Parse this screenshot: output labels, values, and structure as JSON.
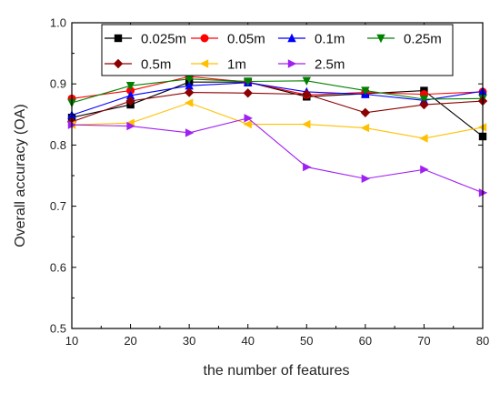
{
  "chart_data": {
    "type": "line",
    "xlabel": "the number of features",
    "ylabel": "Overall accuracy (OA)",
    "x": [
      10,
      20,
      30,
      40,
      50,
      60,
      70,
      80
    ],
    "xlim": [
      10,
      80
    ],
    "ylim": [
      0.5,
      1.0
    ],
    "xticks": [
      "10",
      "20",
      "30",
      "40",
      "50",
      "60",
      "70",
      "80"
    ],
    "yticks": [
      "0.5",
      "0.6",
      "0.7",
      "0.8",
      "0.9",
      "1.0"
    ],
    "grid": false,
    "legend_position": "top",
    "series": [
      {
        "name": "0.025m",
        "color": "#000000",
        "marker": "square",
        "values": [
          0.845,
          0.866,
          0.903,
          0.903,
          0.879,
          0.884,
          0.889,
          0.814
        ]
      },
      {
        "name": "0.05m",
        "color": "#ff0000",
        "marker": "circle",
        "values": [
          0.876,
          0.889,
          0.912,
          0.903,
          0.882,
          0.886,
          0.883,
          0.887
        ]
      },
      {
        "name": "0.1m",
        "color": "#0000ff",
        "marker": "triangle-up",
        "values": [
          0.849,
          0.881,
          0.897,
          0.902,
          0.887,
          0.883,
          0.873,
          0.888
        ]
      },
      {
        "name": "0.25m",
        "color": "#008000",
        "marker": "triangle-down",
        "values": [
          0.869,
          0.897,
          0.908,
          0.904,
          0.905,
          0.889,
          0.875,
          0.876
        ]
      },
      {
        "name": "0.5m",
        "color": "#8b0000",
        "marker": "diamond",
        "values": [
          0.838,
          0.872,
          0.886,
          0.885,
          0.883,
          0.853,
          0.866,
          0.872
        ]
      },
      {
        "name": "1m",
        "color": "#ffc000",
        "marker": "triangle-left",
        "values": [
          0.833,
          0.836,
          0.869,
          0.834,
          0.834,
          0.828,
          0.811,
          0.829
        ]
      },
      {
        "name": "2.5m",
        "color": "#a020f0",
        "marker": "triangle-right",
        "values": [
          0.833,
          0.831,
          0.82,
          0.844,
          0.764,
          0.745,
          0.76,
          0.722
        ]
      }
    ]
  }
}
